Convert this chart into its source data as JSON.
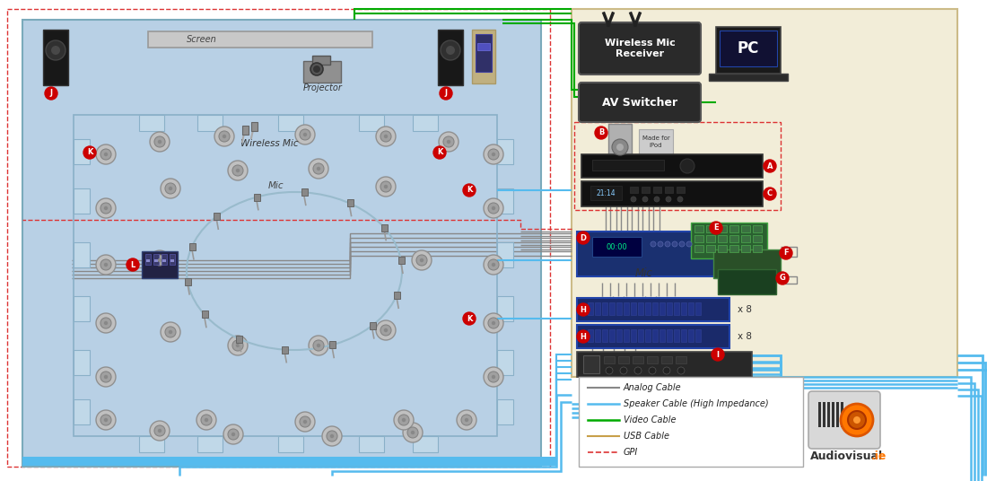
{
  "fig_width": 11.0,
  "fig_height": 5.36,
  "bg_color": "#ffffff",
  "room_bg": "#b8d0e5",
  "equipment_bg": "#f2edd8",
  "legend_bg": "#ffffff",
  "legend_items": [
    {
      "label": "Analog Cable",
      "color": "#888888",
      "style": "solid",
      "lw": 1.5
    },
    {
      "label": "Speaker Cable (High Impedance)",
      "color": "#55bbee",
      "style": "solid",
      "lw": 1.8
    },
    {
      "label": "Video Cable",
      "color": "#00aa00",
      "style": "solid",
      "lw": 1.8
    },
    {
      "label": "USB Cable",
      "color": "#c8a04a",
      "style": "solid",
      "lw": 1.5
    },
    {
      "label": "GPI",
      "color": "#dd3333",
      "style": "dashed",
      "lw": 1.2
    }
  ]
}
